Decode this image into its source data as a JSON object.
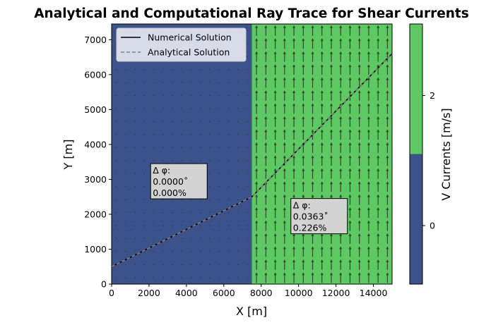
{
  "chart_data": {
    "type": "line",
    "title": "Analytical and Computational Ray Trace for Shear Currents",
    "xlabel": "X [m]",
    "ylabel": "Y [m]",
    "xlim": [
      0,
      15000
    ],
    "ylim": [
      0,
      7450
    ],
    "xticks": [
      0,
      2000,
      4000,
      6000,
      8000,
      10000,
      12000,
      14000
    ],
    "yticks": [
      0,
      1000,
      2000,
      3000,
      4000,
      5000,
      6000,
      7000
    ],
    "xtick_labels": [
      "0",
      "2000",
      "4000",
      "6000",
      "8000",
      "10000",
      "12000",
      "14000"
    ],
    "ytick_labels": [
      "0",
      "1000",
      "2000",
      "3000",
      "4000",
      "5000",
      "6000",
      "7000"
    ],
    "background_field": {
      "boundary_x": 7500,
      "regions": [
        {
          "x_range": [
            0,
            7500
          ],
          "v_current": 0,
          "color": "#3b528b"
        },
        {
          "x_range": [
            7500,
            15000
          ],
          "v_current": 2,
          "color": "#5ec962"
        }
      ]
    },
    "series": [
      {
        "name": "Numerical Solution",
        "style": "solid",
        "color": "#000000",
        "x": [
          0,
          7500,
          15000
        ],
        "y": [
          500,
          2500,
          6600
        ]
      },
      {
        "name": "Analytical Solution",
        "style": "dashed",
        "color": "#808080",
        "x": [
          0,
          7500,
          15000
        ],
        "y": [
          500,
          2500,
          6600
        ]
      }
    ],
    "legend": {
      "position": "top-left"
    },
    "annotations": [
      {
        "lines": [
          "Δ φ:",
          "0.0000˚",
          "0.000%"
        ],
        "x": 2200,
        "y": 3350
      },
      {
        "lines": [
          "Δ φ:",
          "0.0363˚",
          "0.226%"
        ],
        "x": 9700,
        "y": 2350
      }
    ],
    "colorbar": {
      "label": "V Currents [m/s]",
      "min": -0.9,
      "max": 3.1,
      "split": 1.1,
      "ticks": [
        0,
        2
      ],
      "tick_labels": [
        "0",
        "2"
      ],
      "colors": [
        "#3b528b",
        "#5ec962"
      ]
    }
  }
}
